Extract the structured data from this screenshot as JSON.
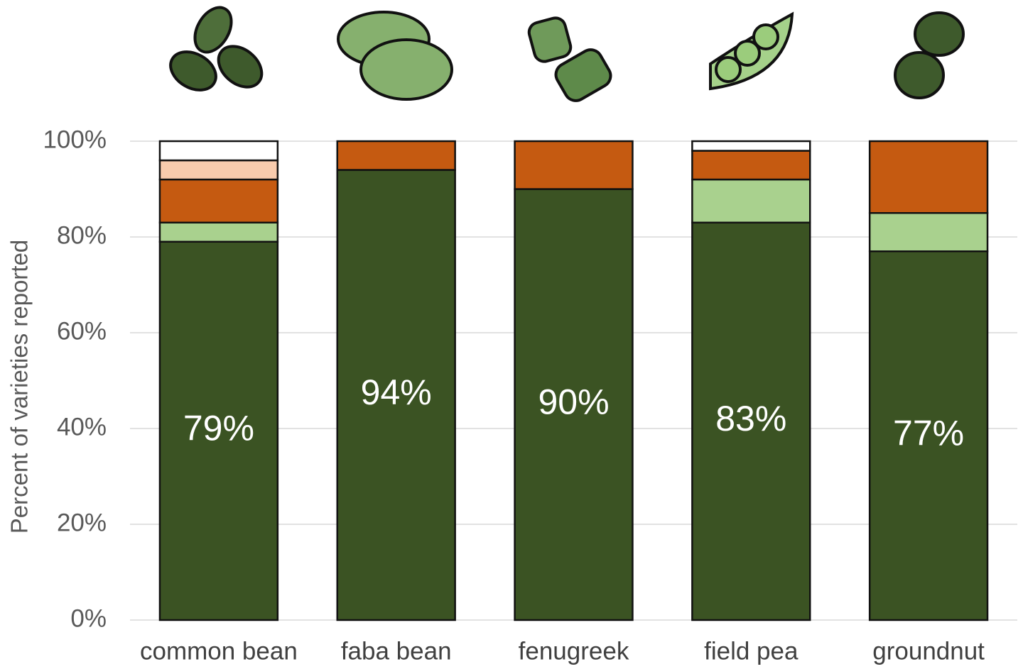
{
  "chart_data": {
    "type": "stacked_bar",
    "y_label": "Percent of varieties reported",
    "categories": [
      "common bean",
      "faba bean",
      "fenugreek",
      "field pea",
      "groundnut"
    ],
    "series": [
      {
        "color": "#3b5323",
        "values": [
          79,
          94,
          90,
          83,
          77
        ],
        "value_labels": [
          "79%",
          "94%",
          "90%",
          "83%",
          "77%"
        ]
      },
      {
        "color": "#a9d18e",
        "values": [
          4,
          0,
          0,
          9,
          8
        ]
      },
      {
        "color": "#c55a11",
        "values": [
          9,
          6,
          10,
          6,
          15
        ]
      },
      {
        "color": "#f8cbad",
        "values": [
          4,
          0,
          0,
          0,
          0
        ]
      },
      {
        "color": "#ffffff",
        "values": [
          4,
          0,
          0,
          2,
          0
        ]
      }
    ],
    "ylim": [
      0,
      100
    ],
    "yticks": [
      {
        "value": 0,
        "label": "0%"
      },
      {
        "value": 20,
        "label": "20%"
      },
      {
        "value": 40,
        "label": "40%"
      },
      {
        "value": 60,
        "label": "60%"
      },
      {
        "value": 80,
        "label": "80%"
      },
      {
        "value": 100,
        "label": "100%"
      }
    ],
    "grid": true
  }
}
